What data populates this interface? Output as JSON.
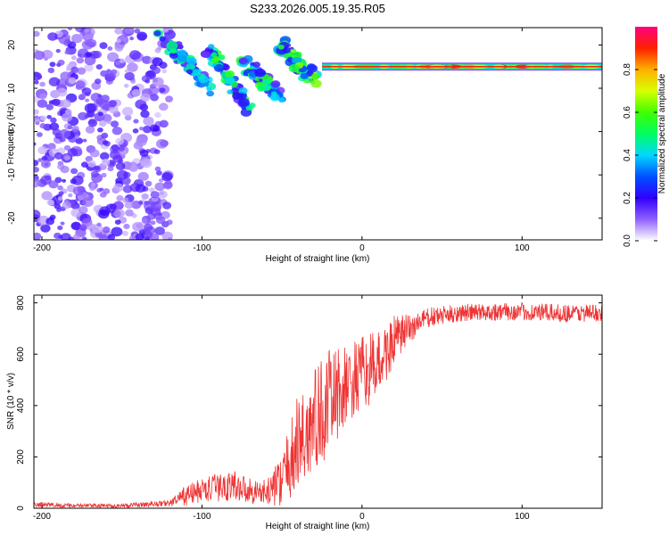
{
  "title": "S233.2026.005.19.35.R05",
  "chart_data": [
    {
      "type": "heatmap",
      "name": "spectrogram",
      "xlabel": "Height of straight line (km)",
      "ylabel": "Frequency (Hz)",
      "xlim": [
        -205,
        150
      ],
      "ylim": [
        -25,
        24
      ],
      "xticks": [
        -200,
        -100,
        0,
        100
      ],
      "yticks": [
        -20,
        -10,
        0,
        10,
        20
      ],
      "colorbar": {
        "label": "Normalized spectral amplitude",
        "range": [
          0,
          1
        ],
        "ticks": [
          0.0,
          0.2,
          0.4,
          0.6,
          0.8
        ]
      },
      "regions": [
        {
          "description": "diffuse noise",
          "x_range": [
            -205,
            -120
          ],
          "y_range": [
            -25,
            24
          ],
          "amplitude": 0.12
        },
        {
          "description": "descending streak 1",
          "from": [
            -125,
            22
          ],
          "to": [
            -95,
            10
          ],
          "amplitude": 0.3
        },
        {
          "description": "descending streak 2",
          "from": [
            -95,
            19
          ],
          "to": [
            -70,
            5
          ],
          "amplitude": 0.35
        },
        {
          "description": "descending streak 3",
          "from": [
            -75,
            16
          ],
          "to": [
            -50,
            8
          ],
          "amplitude": 0.35
        },
        {
          "description": "descending streak 4",
          "from": [
            -50,
            20
          ],
          "to": [
            -30,
            12
          ],
          "amplitude": 0.4
        },
        {
          "description": "steady carrier line",
          "x_range": [
            -25,
            150
          ],
          "frequency": 15,
          "amplitude": 0.9
        }
      ]
    },
    {
      "type": "line",
      "name": "snr",
      "xlabel": "Height of straight line (km)",
      "ylabel": "SNR (10 * v/v)",
      "xlim": [
        -205,
        150
      ],
      "ylim": [
        0,
        830
      ],
      "xticks": [
        -200,
        -100,
        0,
        100
      ],
      "yticks": [
        0,
        200,
        400,
        600,
        800
      ],
      "series": [
        {
          "name": "SNR",
          "color": "#ee3333",
          "x": [
            -205,
            -180,
            -150,
            -120,
            -110,
            -100,
            -90,
            -80,
            -70,
            -60,
            -50,
            -40,
            -30,
            -20,
            -10,
            0,
            10,
            20,
            30,
            40,
            60,
            80,
            100,
            120,
            150
          ],
          "y": [
            15,
            10,
            10,
            20,
            50,
            70,
            80,
            90,
            70,
            60,
            110,
            250,
            330,
            420,
            470,
            520,
            560,
            650,
            700,
            740,
            760,
            765,
            765,
            760,
            760
          ],
          "amp": [
            10,
            8,
            8,
            12,
            40,
            50,
            55,
            60,
            50,
            50,
            100,
            200,
            220,
            200,
            160,
            150,
            130,
            100,
            60,
            40,
            35,
            35,
            35,
            35,
            35
          ]
        }
      ]
    }
  ]
}
